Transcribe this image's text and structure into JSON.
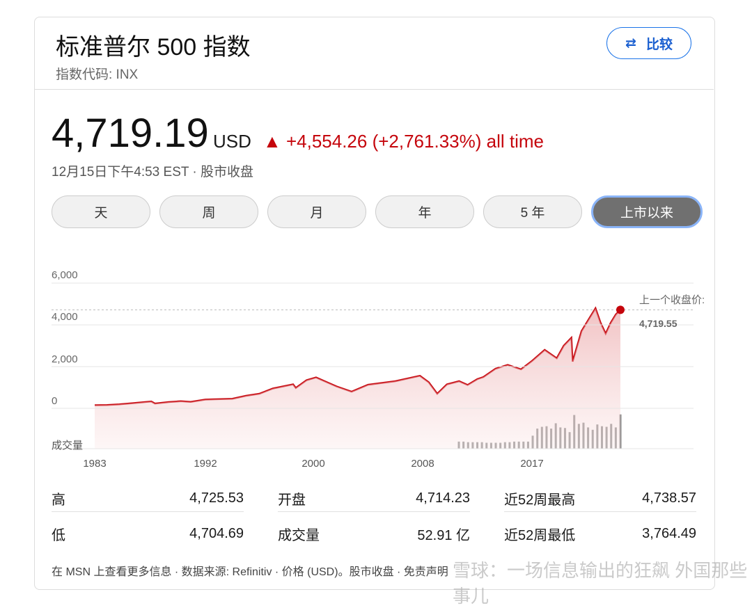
{
  "header": {
    "title": "标准普尔 500 指数",
    "code": "指数代码: INX",
    "compare_label": "比较"
  },
  "quote": {
    "price": "4,719.19",
    "currency": "USD",
    "change": "▲ +4,554.26 (+2,761.33%) all time",
    "timestamp": "12月15日下午4:53 EST · 股市收盘"
  },
  "ranges": [
    {
      "label": "天"
    },
    {
      "label": "周"
    },
    {
      "label": "月"
    },
    {
      "label": "年"
    },
    {
      "label": "5 年"
    },
    {
      "label": "上市以来",
      "active": true
    }
  ],
  "chart_data": {
    "type": "area",
    "y_ticks": [
      "6,000",
      "4,000",
      "2,000",
      "0"
    ],
    "x_ticks": [
      "1983",
      "1992",
      "2000",
      "2008",
      "2017"
    ],
    "ylim": [
      0,
      6000
    ],
    "volume_label": "成交量",
    "last_close_label": "上一个收盘价:",
    "last_close_value": "4,719.55",
    "last_close": 4719.55,
    "color": "#c5050c",
    "grid": true,
    "series": [
      [
        1983,
        150
      ],
      [
        1984,
        160
      ],
      [
        1985,
        190
      ],
      [
        1986,
        240
      ],
      [
        1987.6,
        330
      ],
      [
        1987.9,
        230
      ],
      [
        1989,
        300
      ],
      [
        1990,
        340
      ],
      [
        1990.8,
        310
      ],
      [
        1992,
        420
      ],
      [
        1994,
        460
      ],
      [
        1995,
        600
      ],
      [
        1996,
        700
      ],
      [
        1997,
        950
      ],
      [
        1998.5,
        1150
      ],
      [
        1998.7,
        980
      ],
      [
        1999.5,
        1350
      ],
      [
        2000.2,
        1480
      ],
      [
        2001,
        1250
      ],
      [
        2001.7,
        1050
      ],
      [
        2002.8,
        800
      ],
      [
        2004,
        1130
      ],
      [
        2006,
        1300
      ],
      [
        2007.8,
        1560
      ],
      [
        2008.5,
        1250
      ],
      [
        2009.2,
        700
      ],
      [
        2010,
        1150
      ],
      [
        2011,
        1300
      ],
      [
        2011.7,
        1120
      ],
      [
        2012.5,
        1400
      ],
      [
        2013,
        1500
      ],
      [
        2014,
        1900
      ],
      [
        2015,
        2080
      ],
      [
        2016.1,
        1870
      ],
      [
        2017,
        2270
      ],
      [
        2018,
        2800
      ],
      [
        2018.95,
        2400
      ],
      [
        2019.5,
        3000
      ],
      [
        2020.1,
        3380
      ],
      [
        2020.2,
        2240
      ],
      [
        2020.9,
        3700
      ],
      [
        2021.5,
        4300
      ],
      [
        2022.0,
        4796
      ],
      [
        2022.4,
        4100
      ],
      [
        2022.8,
        3580
      ],
      [
        2023.2,
        4100
      ],
      [
        2023.6,
        4500
      ],
      [
        2023.96,
        4719
      ]
    ],
    "volume": [
      12,
      12,
      11,
      11,
      11,
      11,
      10,
      10,
      10,
      10,
      11,
      11,
      12,
      12,
      12,
      12,
      22,
      34,
      37,
      38,
      34,
      43,
      36,
      35,
      28,
      57,
      42,
      44,
      36,
      32,
      41,
      38,
      37,
      42,
      36,
      58
    ]
  },
  "stats": {
    "rows": [
      [
        {
          "k": "高",
          "v": "4,725.53"
        },
        {
          "k": "开盘",
          "v": "4,714.23"
        },
        {
          "k": "近52周最高",
          "v": "4,738.57"
        }
      ],
      [
        {
          "k": "低",
          "v": "4,704.69"
        },
        {
          "k": "成交量",
          "v": "52.91 亿"
        },
        {
          "k": "近52周最低",
          "v": "3,764.49"
        }
      ]
    ]
  },
  "footer": "在 MSN 上查看更多信息 · 数据来源: Refinitiv · 价格 (USD)。股市收盘 · 免责声明",
  "watermark": "雪球：一场信息输出的狂飙  外国那些事儿"
}
